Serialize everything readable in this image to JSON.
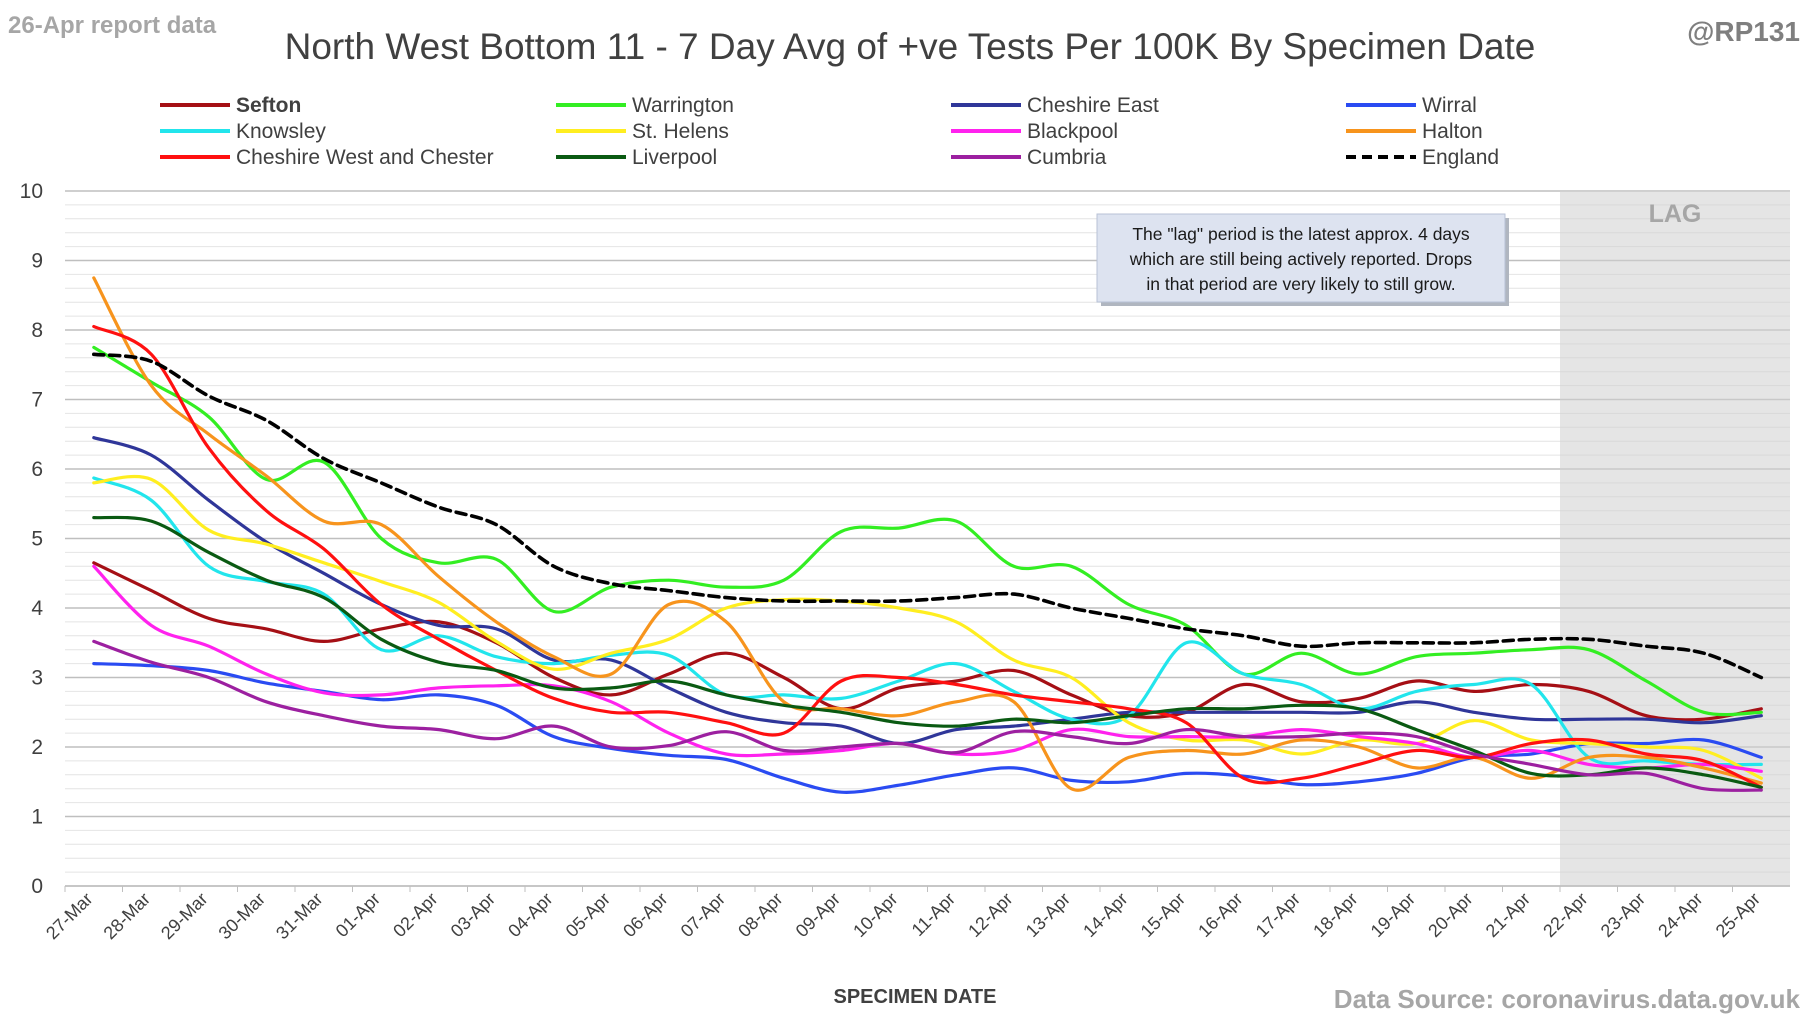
{
  "header": {
    "report_note": "26-Apr report data",
    "author": "@RP131",
    "source": "Data Source: coronavirus.data.gov.uk"
  },
  "chart_data": {
    "type": "line",
    "title": "North West Bottom 11 - 7 Day Avg of +ve Tests Per 100K By Specimen Date",
    "xlabel": "SPECIMEN DATE",
    "ylabel": "",
    "ylim": [
      0,
      10
    ],
    "yticks": [
      0,
      1,
      2,
      3,
      4,
      5,
      6,
      7,
      8,
      9,
      10
    ],
    "grid": true,
    "legend_position": "top",
    "categories": [
      "27-Mar",
      "28-Mar",
      "29-Mar",
      "30-Mar",
      "31-Mar",
      "01-Apr",
      "02-Apr",
      "03-Apr",
      "04-Apr",
      "05-Apr",
      "06-Apr",
      "07-Apr",
      "08-Apr",
      "09-Apr",
      "10-Apr",
      "11-Apr",
      "12-Apr",
      "13-Apr",
      "14-Apr",
      "15-Apr",
      "16-Apr",
      "17-Apr",
      "18-Apr",
      "19-Apr",
      "20-Apr",
      "21-Apr",
      "22-Apr",
      "23-Apr",
      "24-Apr",
      "25-Apr"
    ],
    "lag_region": {
      "label": "LAG",
      "from": "22-Apr",
      "to": "25-Apr"
    },
    "annotation": "The \"lag\" period is the latest approx. 4 days which are still being actively reported. Drops in that period are very likely to still grow.",
    "series": [
      {
        "name": "Sefton",
        "color": "#a50f15",
        "bold": true,
        "values": [
          4.65,
          4.25,
          3.85,
          3.7,
          3.52,
          3.7,
          3.8,
          3.5,
          3.0,
          2.75,
          3.05,
          3.35,
          3.0,
          2.55,
          2.85,
          2.95,
          3.1,
          2.75,
          2.45,
          2.5,
          2.9,
          2.65,
          2.7,
          2.95,
          2.8,
          2.9,
          2.8,
          2.45,
          2.4,
          2.55
        ]
      },
      {
        "name": "Warrington",
        "color": "#33ee22",
        "values": [
          7.75,
          7.25,
          6.75,
          5.85,
          6.1,
          5.0,
          4.65,
          4.7,
          3.95,
          4.3,
          4.4,
          4.3,
          4.4,
          5.1,
          5.15,
          5.25,
          4.6,
          4.6,
          4.05,
          3.75,
          3.05,
          3.35,
          3.05,
          3.3,
          3.35,
          3.4,
          3.4,
          2.95,
          2.5,
          2.5
        ]
      },
      {
        "name": "Cheshire East",
        "color": "#2f3699",
        "values": [
          6.45,
          6.2,
          5.55,
          4.95,
          4.5,
          4.05,
          3.75,
          3.7,
          3.25,
          3.25,
          2.85,
          2.5,
          2.35,
          2.3,
          2.05,
          2.25,
          2.3,
          2.4,
          2.5,
          2.5,
          2.5,
          2.5,
          2.5,
          2.65,
          2.5,
          2.4,
          2.4,
          2.4,
          2.35,
          2.45
        ]
      },
      {
        "name": "Wirral",
        "color": "#2a4bf2",
        "values": [
          3.2,
          3.17,
          3.1,
          2.92,
          2.8,
          2.68,
          2.75,
          2.6,
          2.15,
          1.98,
          1.88,
          1.82,
          1.55,
          1.35,
          1.45,
          1.6,
          1.7,
          1.52,
          1.5,
          1.62,
          1.58,
          1.46,
          1.5,
          1.62,
          1.85,
          1.9,
          2.05,
          2.05,
          2.1,
          1.85
        ]
      },
      {
        "name": "Knowsley",
        "color": "#22e5ec",
        "values": [
          5.87,
          5.55,
          4.6,
          4.38,
          4.2,
          3.4,
          3.6,
          3.3,
          3.2,
          3.32,
          3.32,
          2.75,
          2.75,
          2.7,
          2.95,
          3.2,
          2.8,
          2.4,
          2.45,
          3.5,
          3.05,
          2.9,
          2.55,
          2.8,
          2.9,
          2.9,
          1.85,
          1.8,
          1.75,
          1.75
        ]
      },
      {
        "name": "St. Helens",
        "color": "#ffee20",
        "values": [
          5.8,
          5.85,
          5.12,
          4.92,
          4.65,
          4.38,
          4.08,
          3.52,
          3.12,
          3.35,
          3.55,
          4.0,
          4.12,
          4.1,
          4.0,
          3.8,
          3.25,
          3.0,
          2.35,
          2.1,
          2.1,
          1.9,
          2.1,
          2.05,
          2.38,
          2.1,
          2.05,
          2.0,
          1.95,
          1.55
        ]
      },
      {
        "name": "Blackpool",
        "color": "#ff22ee",
        "values": [
          4.6,
          3.75,
          3.45,
          3.05,
          2.78,
          2.75,
          2.85,
          2.88,
          2.88,
          2.65,
          2.2,
          1.9,
          1.9,
          1.95,
          2.05,
          1.9,
          1.95,
          2.25,
          2.15,
          2.15,
          2.15,
          2.25,
          2.15,
          2.05,
          1.85,
          1.95,
          1.75,
          1.7,
          1.75,
          1.65
        ]
      },
      {
        "name": "Halton",
        "color": "#f7941d",
        "values": [
          8.75,
          7.2,
          6.5,
          5.9,
          5.25,
          5.2,
          4.45,
          3.8,
          3.3,
          3.05,
          4.05,
          3.8,
          2.65,
          2.55,
          2.45,
          2.65,
          2.65,
          1.4,
          1.85,
          1.95,
          1.9,
          2.1,
          2.0,
          1.7,
          1.85,
          1.55,
          1.85,
          1.85,
          1.7,
          1.48
        ]
      },
      {
        "name": "Cheshire West and Chester",
        "color": "#ff1010",
        "values": [
          8.05,
          7.65,
          6.3,
          5.4,
          4.85,
          4.05,
          3.55,
          3.1,
          2.7,
          2.5,
          2.5,
          2.35,
          2.2,
          2.95,
          3.0,
          2.9,
          2.75,
          2.65,
          2.55,
          2.35,
          1.55,
          1.55,
          1.75,
          1.95,
          1.85,
          2.05,
          2.1,
          1.9,
          1.8,
          1.42
        ]
      },
      {
        "name": "Liverpool",
        "color": "#0a5a12",
        "values": [
          5.3,
          5.25,
          4.8,
          4.4,
          4.15,
          3.55,
          3.22,
          3.1,
          2.85,
          2.85,
          2.95,
          2.75,
          2.6,
          2.5,
          2.35,
          2.3,
          2.4,
          2.35,
          2.45,
          2.55,
          2.55,
          2.6,
          2.55,
          2.25,
          1.95,
          1.62,
          1.6,
          1.7,
          1.6,
          1.42
        ]
      },
      {
        "name": "Cumbria",
        "color": "#9c20a0",
        "values": [
          3.52,
          3.22,
          3.0,
          2.65,
          2.45,
          2.3,
          2.25,
          2.12,
          2.3,
          2.0,
          2.02,
          2.22,
          1.95,
          2.0,
          2.05,
          1.92,
          2.22,
          2.15,
          2.05,
          2.25,
          2.15,
          2.15,
          2.2,
          2.15,
          1.9,
          1.75,
          1.6,
          1.62,
          1.4,
          1.38
        ]
      },
      {
        "name": "England",
        "color": "#000000",
        "dashed": true,
        "values": [
          7.65,
          7.55,
          7.05,
          6.7,
          6.15,
          5.8,
          5.45,
          5.2,
          4.6,
          4.35,
          4.25,
          4.15,
          4.1,
          4.1,
          4.1,
          4.15,
          4.2,
          4.0,
          3.85,
          3.7,
          3.6,
          3.45,
          3.5,
          3.5,
          3.5,
          3.55,
          3.55,
          3.45,
          3.35,
          3.0
        ]
      }
    ]
  }
}
